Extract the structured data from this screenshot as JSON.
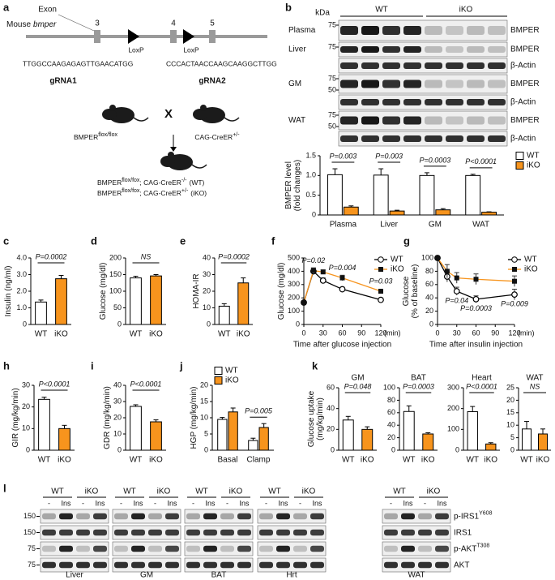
{
  "panel_labels": [
    "a",
    "b",
    "c",
    "d",
    "e",
    "f",
    "g",
    "h",
    "i",
    "j",
    "k",
    "l"
  ],
  "panel_a": {
    "exon_label": "Exon",
    "gene": [
      "Mouse",
      "bmper"
    ],
    "exons": [
      "3",
      "4",
      "5"
    ],
    "loxp": [
      "LoxP",
      "LoxP"
    ],
    "sequences": [
      "TTGGCCAAGAGAGTTGAACATGG",
      "CCCACTAACCAAGCAAGGCTTGG"
    ],
    "grnas": [
      "gRNA1",
      "gRNA2"
    ],
    "cross_symbol": "X",
    "parents": [
      [
        "BMPER",
        "flox/flox"
      ],
      [
        "CAG-CreER",
        "+/-"
      ]
    ],
    "offspring": [
      [
        "BMPER",
        "flox/fox",
        "; CAG-CreER",
        "-/-",
        "(WT)"
      ],
      [
        "BMPER",
        "flox/fox",
        "; CAG-CreER",
        "+/-",
        "(iKO)"
      ]
    ]
  },
  "panel_b_blot": {
    "unit": "kDa",
    "groups": [
      "WT",
      "iKO"
    ],
    "tissues": [
      {
        "name": "Plasma",
        "rows": [
          {
            "protein": "BMPER",
            "markers": [
              "75"
            ]
          }
        ]
      },
      {
        "name": "Liver",
        "rows": [
          {
            "protein": "BMPER",
            "markers": [
              "75"
            ]
          },
          {
            "protein": "β-Actin"
          }
        ]
      },
      {
        "name": "GM",
        "rows": [
          {
            "protein": "BMPER",
            "markers": [
              "75",
              "50"
            ]
          },
          {
            "protein": "β-Actin"
          }
        ]
      },
      {
        "name": "WAT",
        "rows": [
          {
            "protein": "BMPER",
            "markers": [
              "75",
              "50"
            ]
          },
          {
            "protein": "β-Actin"
          }
        ]
      }
    ]
  },
  "panel_l": {
    "groups": [
      "WT",
      "iKO"
    ],
    "treatments": [
      "-",
      "Ins"
    ],
    "tissues": [
      "Liver",
      "GM",
      "BAT",
      "Hrt",
      "WAT"
    ],
    "rows": [
      {
        "protein": [
          "p-IRS1",
          "Y608"
        ],
        "marker": "150"
      },
      {
        "protein": [
          "IRS1"
        ],
        "marker": "150"
      },
      {
        "protein": [
          "p-AKT",
          "T308"
        ],
        "marker": "75"
      },
      {
        "protein": [
          "AKT"
        ],
        "marker": "75"
      }
    ]
  },
  "chart_data": [
    {
      "type": "bar",
      "ylabel": [
        "BMPER level",
        "(fold changes)"
      ],
      "categories": [
        "Plasma",
        "Liver",
        "GM",
        "WAT"
      ],
      "series": [
        {
          "name": "WT",
          "color": "#ffffff",
          "values": [
            1.02,
            1.01,
            1.0,
            1.0
          ],
          "errors": [
            0.15,
            0.16,
            0.07,
            0.03
          ]
        },
        {
          "name": "iKO",
          "color": "#f7941d",
          "values": [
            0.2,
            0.1,
            0.13,
            0.07
          ],
          "errors": [
            0.03,
            0.02,
            0.03,
            0.01
          ]
        }
      ],
      "ylim": [
        0,
        1.5
      ],
      "yticks": [
        0,
        0.5,
        {
          "value": 1,
          "label": "1.0"
        },
        1.5
      ],
      "annotations": [
        "P=0.003",
        "P=0.003",
        "P=0.0003",
        "P<0.0001"
      ],
      "legend": "right"
    },
    {
      "type": "bar",
      "ylabel": "Insulin (ng/ml)",
      "categories": [
        "WT",
        "iKO"
      ],
      "values": [
        1.35,
        2.75
      ],
      "errors": [
        0.12,
        0.2
      ],
      "colors": [
        "#ffffff",
        "#f7941d"
      ],
      "ylim": [
        0,
        4
      ],
      "yticks": [
        0,
        {
          "value": 1,
          "label": "1.0"
        },
        {
          "value": 2,
          "label": "2.0"
        },
        {
          "value": 3,
          "label": "3.0"
        },
        {
          "value": 4,
          "label": "4.0"
        }
      ],
      "annotations": [
        "P=0.0002"
      ]
    },
    {
      "type": "bar",
      "ylabel": "Glucose (mg/dl)",
      "categories": [
        "WT",
        "iKO"
      ],
      "values": [
        140,
        146
      ],
      "errors": [
        5,
        4
      ],
      "colors": [
        "#ffffff",
        "#f7941d"
      ],
      "ylim": [
        0,
        200
      ],
      "yticks": [
        0,
        50,
        100,
        150,
        200
      ],
      "annotations": [
        "NS"
      ]
    },
    {
      "type": "bar",
      "ylabel": "HOMA-IR",
      "categories": [
        "WT",
        "iKO"
      ],
      "values": [
        11,
        25
      ],
      "errors": [
        1.5,
        3
      ],
      "colors": [
        "#ffffff",
        "#f7941d"
      ],
      "ylim": [
        0,
        40
      ],
      "yticks": [
        0,
        10,
        20,
        30,
        40
      ],
      "annotations": [
        "P=0.0002"
      ]
    },
    {
      "type": "line",
      "ylabel": "Glucose (mg/dl)",
      "xlabel": "Time after glucose injection",
      "xunit": "(min)",
      "x": [
        0,
        15,
        30,
        60,
        120
      ],
      "xlim": [
        0,
        120
      ],
      "xticks": [
        0,
        30,
        60,
        90,
        120
      ],
      "series": [
        {
          "name": "WT",
          "color": "#000000",
          "values": [
            165,
            400,
            330,
            265,
            185
          ],
          "errors": [
            10,
            25,
            20,
            15,
            8
          ]
        },
        {
          "name": "iKO",
          "color": "#f7941d",
          "values": [
            165,
            405,
            395,
            350,
            250
          ],
          "errors": [
            10,
            20,
            15,
            20,
            10
          ]
        }
      ],
      "ylim": [
        0,
        500
      ],
      "yticks": [
        0,
        100,
        200,
        300,
        400,
        500
      ],
      "annotations": [
        "P=0.02",
        "P=0.004",
        "P=0.03"
      ],
      "legend": "upper right"
    },
    {
      "type": "line",
      "ylabel": [
        "Glucose",
        "(% of baseline)"
      ],
      "xlabel": "Time after insulin injection",
      "xunit": "(min)",
      "x": [
        0,
        15,
        30,
        60,
        120
      ],
      "xlim": [
        0,
        120
      ],
      "xticks": [
        0,
        30,
        60,
        90,
        120
      ],
      "series": [
        {
          "name": "WT",
          "color": "#000000",
          "values": [
            100,
            72,
            50,
            38,
            45
          ],
          "errors": [
            0,
            8,
            6,
            5,
            8
          ]
        },
        {
          "name": "iKO",
          "color": "#f7941d",
          "values": [
            100,
            80,
            70,
            68,
            65
          ],
          "errors": [
            0,
            10,
            8,
            8,
            8
          ]
        }
      ],
      "ylim": [
        0,
        100
      ],
      "yticks": [
        0,
        20,
        40,
        60,
        80,
        100
      ],
      "annotations": [
        "P=0.04",
        "P=0.0003",
        "P=0.009"
      ],
      "legend": "upper right"
    },
    {
      "type": "bar",
      "ylabel": "GIR (mg/kg/min)",
      "categories": [
        "WT",
        "iKO"
      ],
      "values": [
        23.5,
        10
      ],
      "errors": [
        1,
        1.5
      ],
      "colors": [
        "#ffffff",
        "#f7941d"
      ],
      "ylim": [
        0,
        30
      ],
      "yticks": [
        0,
        10,
        20,
        30
      ],
      "annotations": [
        "P<0.0001"
      ]
    },
    {
      "type": "bar",
      "ylabel": "GDR (mg/kg/min)",
      "categories": [
        "WT",
        "iKO"
      ],
      "values": [
        27,
        17.5
      ],
      "errors": [
        1,
        1.2
      ],
      "colors": [
        "#ffffff",
        "#f7941d"
      ],
      "ylim": [
        0,
        40
      ],
      "yticks": [
        0,
        10,
        20,
        30,
        40
      ],
      "annotations": [
        "P<0.0001"
      ]
    },
    {
      "type": "bar",
      "ylabel": "HGP (mg/kg/min)",
      "categories": [
        "Basal",
        "Clamp"
      ],
      "series": [
        {
          "name": "WT",
          "color": "#ffffff",
          "values": [
            9.5,
            3
          ],
          "errors": [
            0.6,
            0.7
          ]
        },
        {
          "name": "iKO",
          "color": "#f7941d",
          "values": [
            11.8,
            7
          ],
          "errors": [
            1.2,
            1.2
          ]
        }
      ],
      "ylim": [
        0,
        20
      ],
      "yticks": [
        0,
        5,
        10,
        15,
        20
      ],
      "annotations": [
        "P=0.005"
      ],
      "legend": "upper left"
    },
    {
      "type": "bar",
      "title": "GM",
      "ylabel": [
        "Glucose uptake",
        "(mg/kg/min)"
      ],
      "categories": [
        "WT",
        "iKO"
      ],
      "values": [
        29,
        20
      ],
      "errors": [
        3.5,
        2.5
      ],
      "colors": [
        "#ffffff",
        "#f7941d"
      ],
      "ylim": [
        0,
        60
      ],
      "yticks": [
        0,
        20,
        40,
        60
      ],
      "annotations": [
        "P=0.048"
      ]
    },
    {
      "type": "bar",
      "title": "BAT",
      "categories": [
        "WT",
        "iKO"
      ],
      "values": [
        62,
        26
      ],
      "errors": [
        9,
        2
      ],
      "colors": [
        "#ffffff",
        "#f7941d"
      ],
      "ylim": [
        0,
        100
      ],
      "yticks": [
        0,
        20,
        40,
        60,
        80,
        100
      ],
      "annotations": [
        "P=0.0003"
      ]
    },
    {
      "type": "bar",
      "title": "Heart",
      "categories": [
        "WT",
        "iKO"
      ],
      "values": [
        185,
        30
      ],
      "errors": [
        25,
        6
      ],
      "colors": [
        "#ffffff",
        "#f7941d"
      ],
      "ylim": [
        0,
        300
      ],
      "yticks": [
        0,
        100,
        200,
        300
      ],
      "annotations": [
        "P<0.0001"
      ]
    },
    {
      "type": "bar",
      "title": "WAT",
      "categories": [
        "WT",
        "iKO"
      ],
      "values": [
        8.5,
        6.5
      ],
      "errors": [
        3,
        2
      ],
      "colors": [
        "#ffffff",
        "#f7941d"
      ],
      "ylim": [
        0,
        25
      ],
      "yticks": [
        0,
        5,
        10,
        15,
        20,
        25
      ],
      "annotations": [
        "NS"
      ]
    }
  ]
}
